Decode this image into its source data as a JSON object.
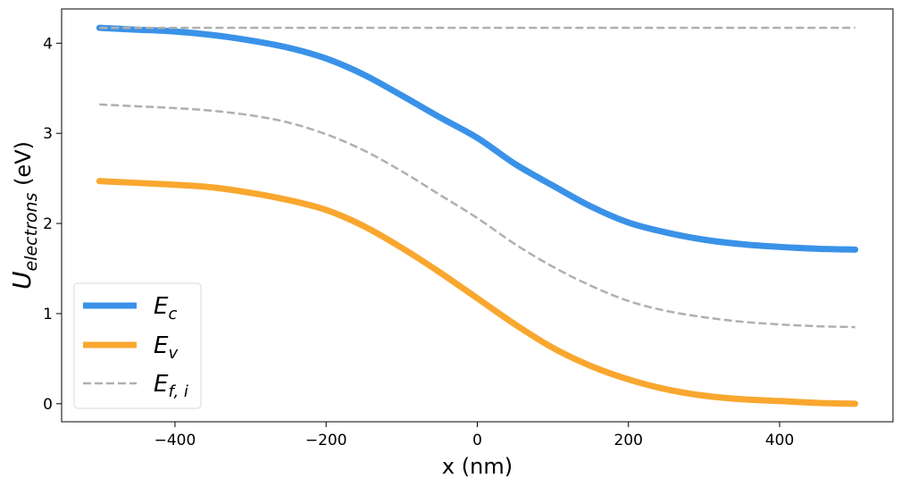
{
  "chart_data": {
    "type": "line",
    "xlabel": "x (nm)",
    "ylabel": {
      "main": "U",
      "sub": "electrons",
      "unit": " (eV)"
    },
    "xlim": [
      -550,
      550
    ],
    "ylim": [
      -0.2,
      4.38
    ],
    "xticks": [
      -400,
      -200,
      0,
      200,
      400
    ],
    "xtick_labels": [
      "−400",
      "−200",
      "0",
      "200",
      "400"
    ],
    "yticks": [
      0,
      1,
      2,
      3,
      4
    ],
    "ytick_labels": [
      "0",
      "1",
      "2",
      "3",
      "4"
    ],
    "grid": false,
    "legend_position": "lower-left",
    "series": [
      {
        "name": "E_c",
        "label_main": "E",
        "label_sub": "c",
        "color": "#3a92e8",
        "style": "solid",
        "x": [
          -500,
          -450,
          -400,
          -350,
          -300,
          -250,
          -200,
          -150,
          -100,
          -50,
          0,
          50,
          100,
          150,
          200,
          250,
          300,
          350,
          400,
          450,
          500
        ],
        "y": [
          4.17,
          4.15,
          4.13,
          4.09,
          4.03,
          3.95,
          3.83,
          3.65,
          3.42,
          3.18,
          2.95,
          2.66,
          2.42,
          2.19,
          2.01,
          1.9,
          1.82,
          1.77,
          1.74,
          1.72,
          1.71
        ]
      },
      {
        "name": "E_v",
        "label_main": "E",
        "label_sub": "v",
        "color": "#f9a72f",
        "style": "solid",
        "x": [
          -500,
          -450,
          -400,
          -350,
          -300,
          -250,
          -200,
          -150,
          -100,
          -50,
          0,
          50,
          100,
          150,
          200,
          250,
          300,
          350,
          400,
          450,
          500
        ],
        "y": [
          2.47,
          2.45,
          2.43,
          2.4,
          2.34,
          2.26,
          2.15,
          1.97,
          1.73,
          1.46,
          1.17,
          0.88,
          0.62,
          0.42,
          0.27,
          0.16,
          0.09,
          0.05,
          0.03,
          0.01,
          0.0
        ]
      },
      {
        "name": "E_f,i",
        "label_main": "E",
        "label_sub": "f, i",
        "color": "#b0b0b0",
        "style": "dashed",
        "x": [
          -500,
          -450,
          -400,
          -350,
          -300,
          -250,
          -200,
          -150,
          -100,
          -50,
          0,
          50,
          100,
          150,
          200,
          250,
          300,
          350,
          400,
          450,
          500
        ],
        "y": [
          3.32,
          3.3,
          3.28,
          3.25,
          3.2,
          3.12,
          2.99,
          2.81,
          2.58,
          2.32,
          2.06,
          1.77,
          1.52,
          1.31,
          1.14,
          1.03,
          0.96,
          0.91,
          0.88,
          0.86,
          0.85
        ]
      },
      {
        "name": "",
        "color": "#b0b0b0",
        "style": "dashed",
        "x": [
          -500,
          500
        ],
        "y": [
          4.17,
          4.17
        ]
      }
    ]
  }
}
